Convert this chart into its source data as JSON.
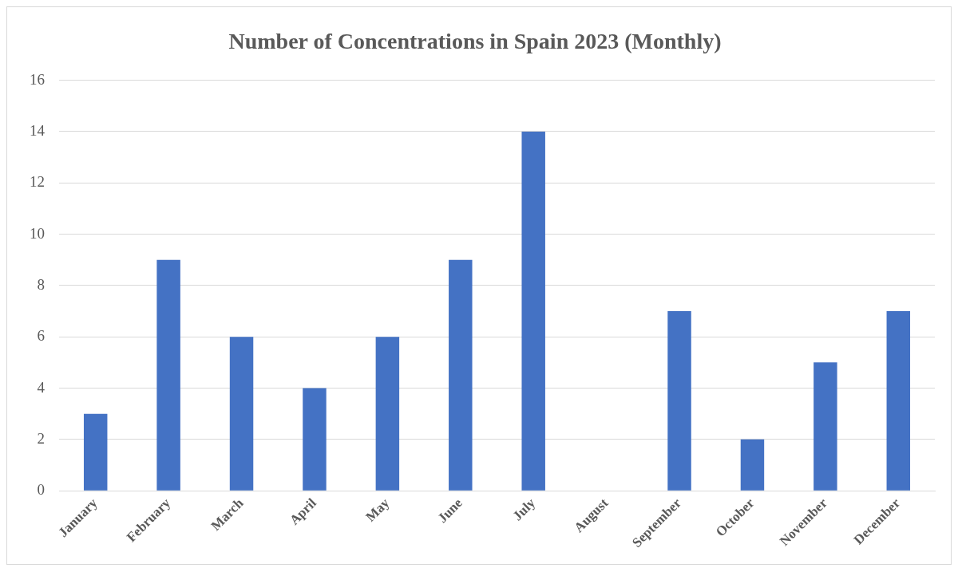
{
  "chart_data": {
    "type": "bar",
    "title": "Number of Concentrations in Spain 2023 (Monthly)",
    "categories": [
      "January",
      "February",
      "March",
      "April",
      "May",
      "June",
      "July",
      "August",
      "September",
      "October",
      "November",
      "December"
    ],
    "values": [
      3,
      9,
      6,
      4,
      6,
      9,
      14,
      0,
      7,
      2,
      5,
      7
    ],
    "color": "#4472c4",
    "ylim": [
      0,
      16
    ],
    "yticks": [
      0,
      2,
      4,
      6,
      8,
      10,
      12,
      14,
      16
    ],
    "grid": "y",
    "legend": false
  }
}
